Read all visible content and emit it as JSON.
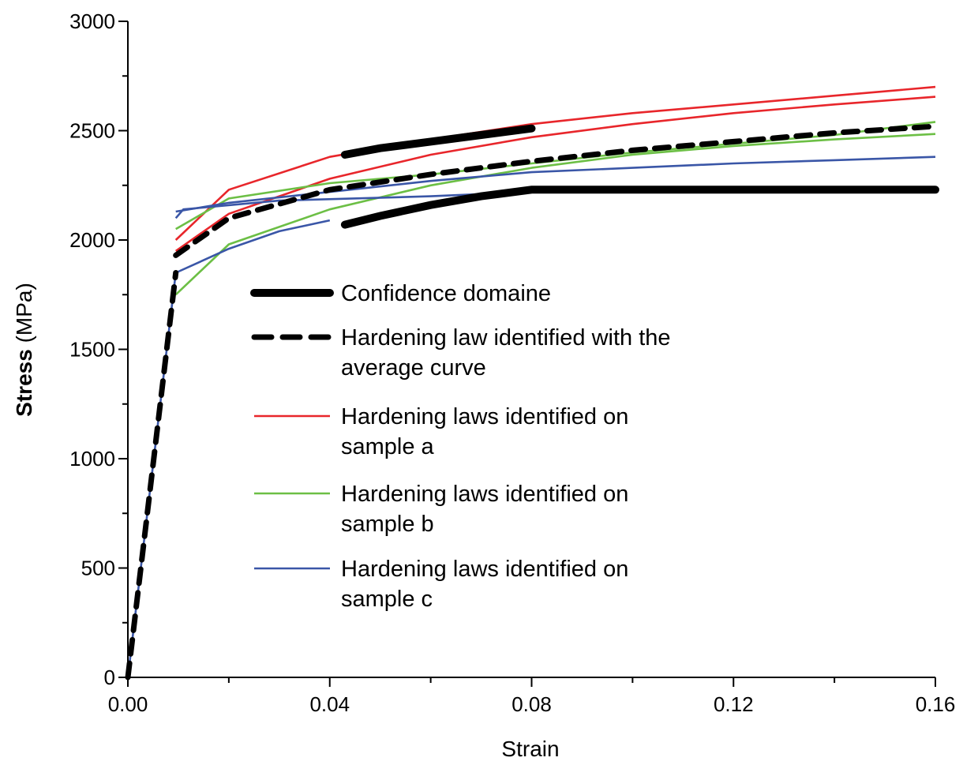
{
  "chart_data": {
    "type": "line",
    "title": "",
    "xlabel": "Strain",
    "ylabel_bold": "Stress",
    "ylabel_rest": " (MPa)",
    "xlim": [
      0,
      0.16
    ],
    "ylim": [
      0,
      3000
    ],
    "x_ticks": [
      "0.00",
      "0.04",
      "0.08",
      "0.12",
      "0.16"
    ],
    "y_ticks": [
      "0",
      "500",
      "1000",
      "1500",
      "2000",
      "2500",
      "3000"
    ],
    "grid": false,
    "legend_position": "center",
    "legend": [
      {
        "label_lines": [
          "Confidence domaine"
        ],
        "color": "#000000",
        "style": "thick-solid"
      },
      {
        "label_lines": [
          "Hardening law identified with the",
          "average curve"
        ],
        "color": "#000000",
        "style": "thick-dashed"
      },
      {
        "label_lines": [
          "Hardening laws identified on",
          "sample a"
        ],
        "color": "#e8262b",
        "style": "solid"
      },
      {
        "label_lines": [
          "Hardening laws identified on",
          "sample b"
        ],
        "color": "#6cbf45",
        "style": "solid"
      },
      {
        "label_lines": [
          "Hardening laws identified on",
          "sample c"
        ],
        "color": "#3a56a7",
        "style": "solid"
      }
    ],
    "elastic_segment": {
      "x": [
        0,
        0.0095
      ],
      "y": [
        0,
        1850
      ],
      "color": "#3a56a7"
    },
    "series": [
      {
        "group": "sample a",
        "color": "#e8262b",
        "style": "solid",
        "x": [
          0.0095,
          0.02,
          0.04,
          0.06,
          0.08,
          0.1,
          0.12,
          0.14,
          0.16
        ],
        "y": [
          2000,
          2230,
          2380,
          2460,
          2530,
          2580,
          2620,
          2660,
          2700
        ]
      },
      {
        "group": "sample a",
        "color": "#e8262b",
        "style": "solid",
        "x": [
          0.0095,
          0.02,
          0.04,
          0.06,
          0.08,
          0.1,
          0.12,
          0.14,
          0.16
        ],
        "y": [
          1950,
          2120,
          2280,
          2390,
          2470,
          2530,
          2580,
          2620,
          2655
        ]
      },
      {
        "group": "sample b",
        "color": "#6cbf45",
        "style": "solid",
        "x": [
          0.0095,
          0.02,
          0.04,
          0.06,
          0.08,
          0.1,
          0.12,
          0.14,
          0.16
        ],
        "y": [
          2050,
          2190,
          2260,
          2300,
          2350,
          2400,
          2440,
          2480,
          2540
        ]
      },
      {
        "group": "sample b",
        "color": "#6cbf45",
        "style": "solid",
        "x": [
          0.0095,
          0.02,
          0.04,
          0.06,
          0.08,
          0.1,
          0.12,
          0.14,
          0.16
        ],
        "y": [
          1750,
          1980,
          2140,
          2250,
          2330,
          2390,
          2430,
          2460,
          2485
        ]
      },
      {
        "group": "sample c",
        "color": "#3a56a7",
        "style": "solid",
        "x": [
          0.0095,
          0.02,
          0.04,
          0.06,
          0.08,
          0.1,
          0.12,
          0.14,
          0.16
        ],
        "y": [
          2130,
          2170,
          2220,
          2270,
          2310,
          2330,
          2350,
          2365,
          2380
        ]
      },
      {
        "group": "sample c",
        "color": "#3a56a7",
        "style": "solid",
        "x": [
          0.0095,
          0.011,
          0.03,
          0.06,
          0.08,
          0.1,
          0.12,
          0.14,
          0.16
        ],
        "y": [
          2100,
          2140,
          2180,
          2200,
          2220,
          2230,
          2235,
          2240,
          2240
        ]
      },
      {
        "group": "sample c",
        "color": "#3a56a7",
        "style": "solid",
        "x": [
          0.0095,
          0.02,
          0.03,
          0.04
        ],
        "y": [
          1850,
          1960,
          2040,
          2090
        ]
      },
      {
        "group": "average",
        "color": "#000000",
        "style": "dashed",
        "x": [
          0,
          0.0095
        ],
        "y": [
          0,
          1850
        ]
      },
      {
        "group": "average",
        "color": "#000000",
        "style": "dashed",
        "x": [
          0.0095,
          0.02,
          0.04,
          0.06,
          0.08,
          0.1,
          0.12,
          0.14,
          0.16
        ],
        "y": [
          1930,
          2100,
          2230,
          2300,
          2360,
          2410,
          2450,
          2490,
          2520
        ]
      },
      {
        "group": "confidence",
        "color": "#000000",
        "style": "thick",
        "x": [
          0.043,
          0.05,
          0.06,
          0.07,
          0.08
        ],
        "y": [
          2390,
          2420,
          2450,
          2480,
          2510
        ]
      },
      {
        "group": "confidence",
        "color": "#000000",
        "style": "thick",
        "x": [
          0.043,
          0.05,
          0.06,
          0.07,
          0.08,
          0.12,
          0.16
        ],
        "y": [
          2070,
          2110,
          2160,
          2200,
          2230,
          2230,
          2230
        ]
      }
    ]
  }
}
